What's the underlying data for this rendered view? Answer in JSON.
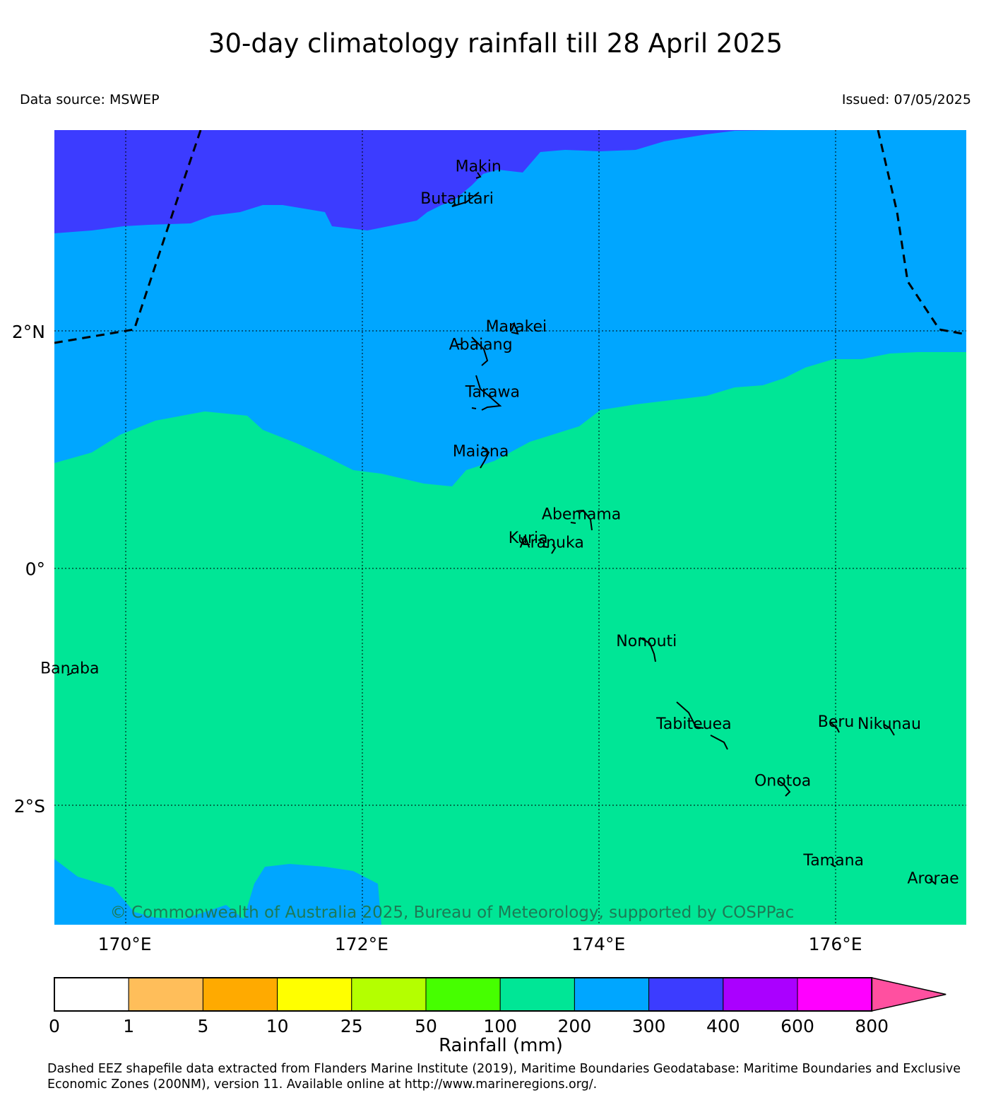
{
  "header": {
    "title": "30-day climatology rainfall till 28 April 2025",
    "data_source": "Data source: MSWEP",
    "issued": "Issued: 07/05/2025"
  },
  "map": {
    "extent": {
      "lon_min": 169.4,
      "lon_max": 177.1,
      "lat_min": -3.0,
      "lat_max": 3.7
    },
    "lat_labels": [
      {
        "lat": 2,
        "text": "2°N"
      },
      {
        "lat": 0,
        "text": "0°"
      },
      {
        "lat": -2,
        "text": "2°S"
      }
    ],
    "lon_labels": [
      {
        "lon": 170,
        "text": "170°E"
      },
      {
        "lon": 172,
        "text": "172°E"
      },
      {
        "lon": 174,
        "text": "174°E"
      },
      {
        "lon": 176,
        "text": "176°E"
      }
    ],
    "rainfall_zones": {
      "north": {
        "range": "300-400 mm",
        "color": "#3c3cff"
      },
      "central": {
        "range": "200-300 mm",
        "color": "#00a6ff"
      },
      "south": {
        "range": "100-200 mm",
        "color": "#00e696"
      }
    },
    "islands": [
      {
        "name": "Makin",
        "lon": 172.98,
        "lat": 3.35
      },
      {
        "name": "Butaritari",
        "lon": 172.8,
        "lat": 3.08
      },
      {
        "name": "Marakei",
        "lon": 173.3,
        "lat": 2.0
      },
      {
        "name": "Abaiang",
        "lon": 173.0,
        "lat": 1.85
      },
      {
        "name": "Tarawa",
        "lon": 173.1,
        "lat": 1.45
      },
      {
        "name": "Maiana",
        "lon": 173.0,
        "lat": 0.95
      },
      {
        "name": "Abemama",
        "lon": 173.85,
        "lat": 0.42
      },
      {
        "name": "Kuria",
        "lon": 173.4,
        "lat": 0.22
      },
      {
        "name": "Aranuka",
        "lon": 173.6,
        "lat": 0.18
      },
      {
        "name": "Nonouti",
        "lon": 174.4,
        "lat": -0.65
      },
      {
        "name": "Banaba",
        "lon": 169.53,
        "lat": -0.88
      },
      {
        "name": "Tabiteuea",
        "lon": 174.8,
        "lat": -1.35
      },
      {
        "name": "Beru",
        "lon": 176.0,
        "lat": -1.33
      },
      {
        "name": "Nikunau",
        "lon": 176.45,
        "lat": -1.35
      },
      {
        "name": "Onotoa",
        "lon": 175.55,
        "lat": -1.83
      },
      {
        "name": "Tamana",
        "lon": 175.98,
        "lat": -2.5
      },
      {
        "name": "Arorae",
        "lon": 176.82,
        "lat": -2.65
      }
    ],
    "copyright": "© Commonwealth of Australia 2025, Bureau of Meteorology, supported by COSPPac"
  },
  "colorbar": {
    "label": "Rainfall (mm)",
    "ticks": [
      "0",
      "1",
      "5",
      "10",
      "25",
      "50",
      "100",
      "200",
      "300",
      "400",
      "600",
      "800"
    ],
    "colors": [
      "#ffffff",
      "#ffbe5a",
      "#ffaa00",
      "#ffff00",
      "#b4ff00",
      "#46ff00",
      "#00e696",
      "#00a6ff",
      "#3c3cff",
      "#aa00ff",
      "#ff00ff",
      "#ff50a0"
    ]
  },
  "footer": {
    "credit": "Dashed EEZ shapefile data extracted from Flanders Marine Institute (2019), Maritime Boundaries Geodatabase: Maritime Boundaries and Exclusive Economic Zones (200NM), version 11. Available online at http://www.marineregions.org/."
  }
}
